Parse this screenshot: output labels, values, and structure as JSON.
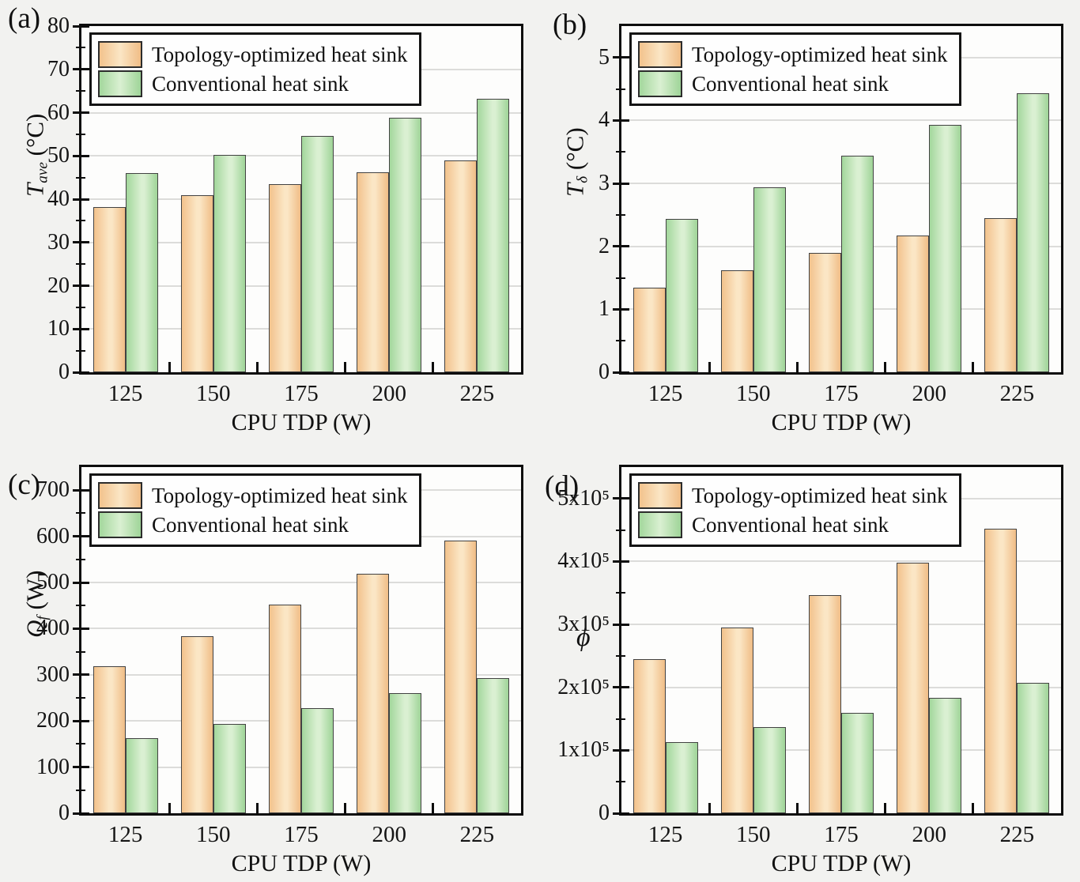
{
  "figure": {
    "background": "#f2f2f0",
    "x_axis_title": "CPU TDP (W)",
    "legend_items": [
      {
        "label": "Topology-optimized heat sink",
        "color_key": "orange"
      },
      {
        "label": "Conventional heat sink",
        "color_key": "green"
      }
    ]
  },
  "colors": {
    "orange_edge": "#f2c28c",
    "orange_center": "#fbe6c5",
    "green_edge": "#a3d79c",
    "green_center": "#daf0d2",
    "bar_outline": "#424242",
    "axis_frame": "#0d0d0d",
    "gridline": "#dcdcda",
    "plot_background": "#fdfdfc"
  },
  "chart_data": [
    {
      "type": "bar",
      "panel_label": "(a)",
      "xlabel": "CPU TDP (W)",
      "ylabel": {
        "base": "T",
        "sub": "ave",
        "unit": " (°C)"
      },
      "categories": [
        "125",
        "150",
        "175",
        "200",
        "225"
      ],
      "series": [
        {
          "name": "Topology-optimized heat sink",
          "color_key": "orange",
          "values": [
            38.1,
            40.9,
            43.5,
            46.2,
            49.0
          ]
        },
        {
          "name": "Conventional heat sink",
          "color_key": "green",
          "values": [
            46.1,
            50.3,
            54.6,
            58.9,
            63.2
          ]
        }
      ],
      "ylim": [
        0,
        80
      ],
      "frame_top": 80,
      "yticks": [
        {
          "v": 0,
          "label": "0"
        },
        {
          "v": 10,
          "label": "10"
        },
        {
          "v": 20,
          "label": "20"
        },
        {
          "v": 30,
          "label": "30"
        },
        {
          "v": 40,
          "label": "40"
        },
        {
          "v": 50,
          "label": "50"
        },
        {
          "v": 60,
          "label": "60"
        },
        {
          "v": 70,
          "label": "70"
        },
        {
          "v": 80,
          "label": "80"
        }
      ],
      "minor_step": 5,
      "grid": true,
      "legend_position": "top-left"
    },
    {
      "type": "bar",
      "panel_label": "(b)",
      "xlabel": "CPU TDP (W)",
      "ylabel": {
        "base": "T",
        "sub": "δ",
        "unit": " (°C)"
      },
      "categories": [
        "125",
        "150",
        "175",
        "200",
        "225"
      ],
      "series": [
        {
          "name": "Topology-optimized heat sink",
          "color_key": "orange",
          "values": [
            1.35,
            1.62,
            1.9,
            2.17,
            2.45
          ]
        },
        {
          "name": "Conventional heat sink",
          "color_key": "green",
          "values": [
            2.44,
            2.94,
            3.44,
            3.93,
            4.43
          ]
        }
      ],
      "ylim": [
        0,
        5
      ],
      "frame_top": 5.5,
      "yticks": [
        {
          "v": 0,
          "label": "0"
        },
        {
          "v": 1,
          "label": "1"
        },
        {
          "v": 2,
          "label": "2"
        },
        {
          "v": 3,
          "label": "3"
        },
        {
          "v": 4,
          "label": "4"
        },
        {
          "v": 5,
          "label": "5"
        }
      ],
      "minor_step": 0.5,
      "grid": true,
      "legend_position": "top-left"
    },
    {
      "type": "bar",
      "panel_label": "(c)",
      "xlabel": "CPU TDP (W)",
      "ylabel": {
        "base": "Q",
        "sub": "f",
        "unit": " (W)"
      },
      "categories": [
        "125",
        "150",
        "175",
        "200",
        "225"
      ],
      "series": [
        {
          "name": "Topology-optimized heat sink",
          "color_key": "orange",
          "values": [
            318,
            384,
            452,
            519,
            590
          ]
        },
        {
          "name": "Conventional heat sink",
          "color_key": "green",
          "values": [
            162,
            194,
            227,
            260,
            293
          ]
        }
      ],
      "ylim": [
        0,
        700
      ],
      "frame_top": 750,
      "yticks": [
        {
          "v": 0,
          "label": "0"
        },
        {
          "v": 100,
          "label": "100"
        },
        {
          "v": 200,
          "label": "200"
        },
        {
          "v": 300,
          "label": "300"
        },
        {
          "v": 400,
          "label": "400"
        },
        {
          "v": 500,
          "label": "500"
        },
        {
          "v": 600,
          "label": "600"
        },
        {
          "v": 700,
          "label": "700"
        }
      ],
      "minor_step": 50,
      "grid": true,
      "legend_position": "top-left"
    },
    {
      "type": "bar",
      "panel_label": "(d)",
      "xlabel": "CPU TDP (W)",
      "ylabel": {
        "base": "ϕ",
        "sub": "",
        "unit": ""
      },
      "categories": [
        "125",
        "150",
        "175",
        "200",
        "225"
      ],
      "series": [
        {
          "name": "Topology-optimized heat sink",
          "color_key": "orange",
          "values": [
            245000,
            295000,
            346000,
            398000,
            452000
          ]
        },
        {
          "name": "Conventional heat sink",
          "color_key": "green",
          "values": [
            113000,
            137000,
            160000,
            183000,
            207000
          ]
        }
      ],
      "ylim": [
        0,
        500000
      ],
      "frame_top": 550000,
      "yticks": [
        {
          "v": 0,
          "label": "0"
        },
        {
          "v": 100000,
          "label": "1x10⁵"
        },
        {
          "v": 200000,
          "label": "2x10⁵"
        },
        {
          "v": 300000,
          "label": "3x10⁵"
        },
        {
          "v": 400000,
          "label": "4x10⁵"
        },
        {
          "v": 500000,
          "label": "5x10⁵"
        }
      ],
      "minor_step": 50000,
      "grid": true,
      "legend_position": "top-left"
    }
  ]
}
